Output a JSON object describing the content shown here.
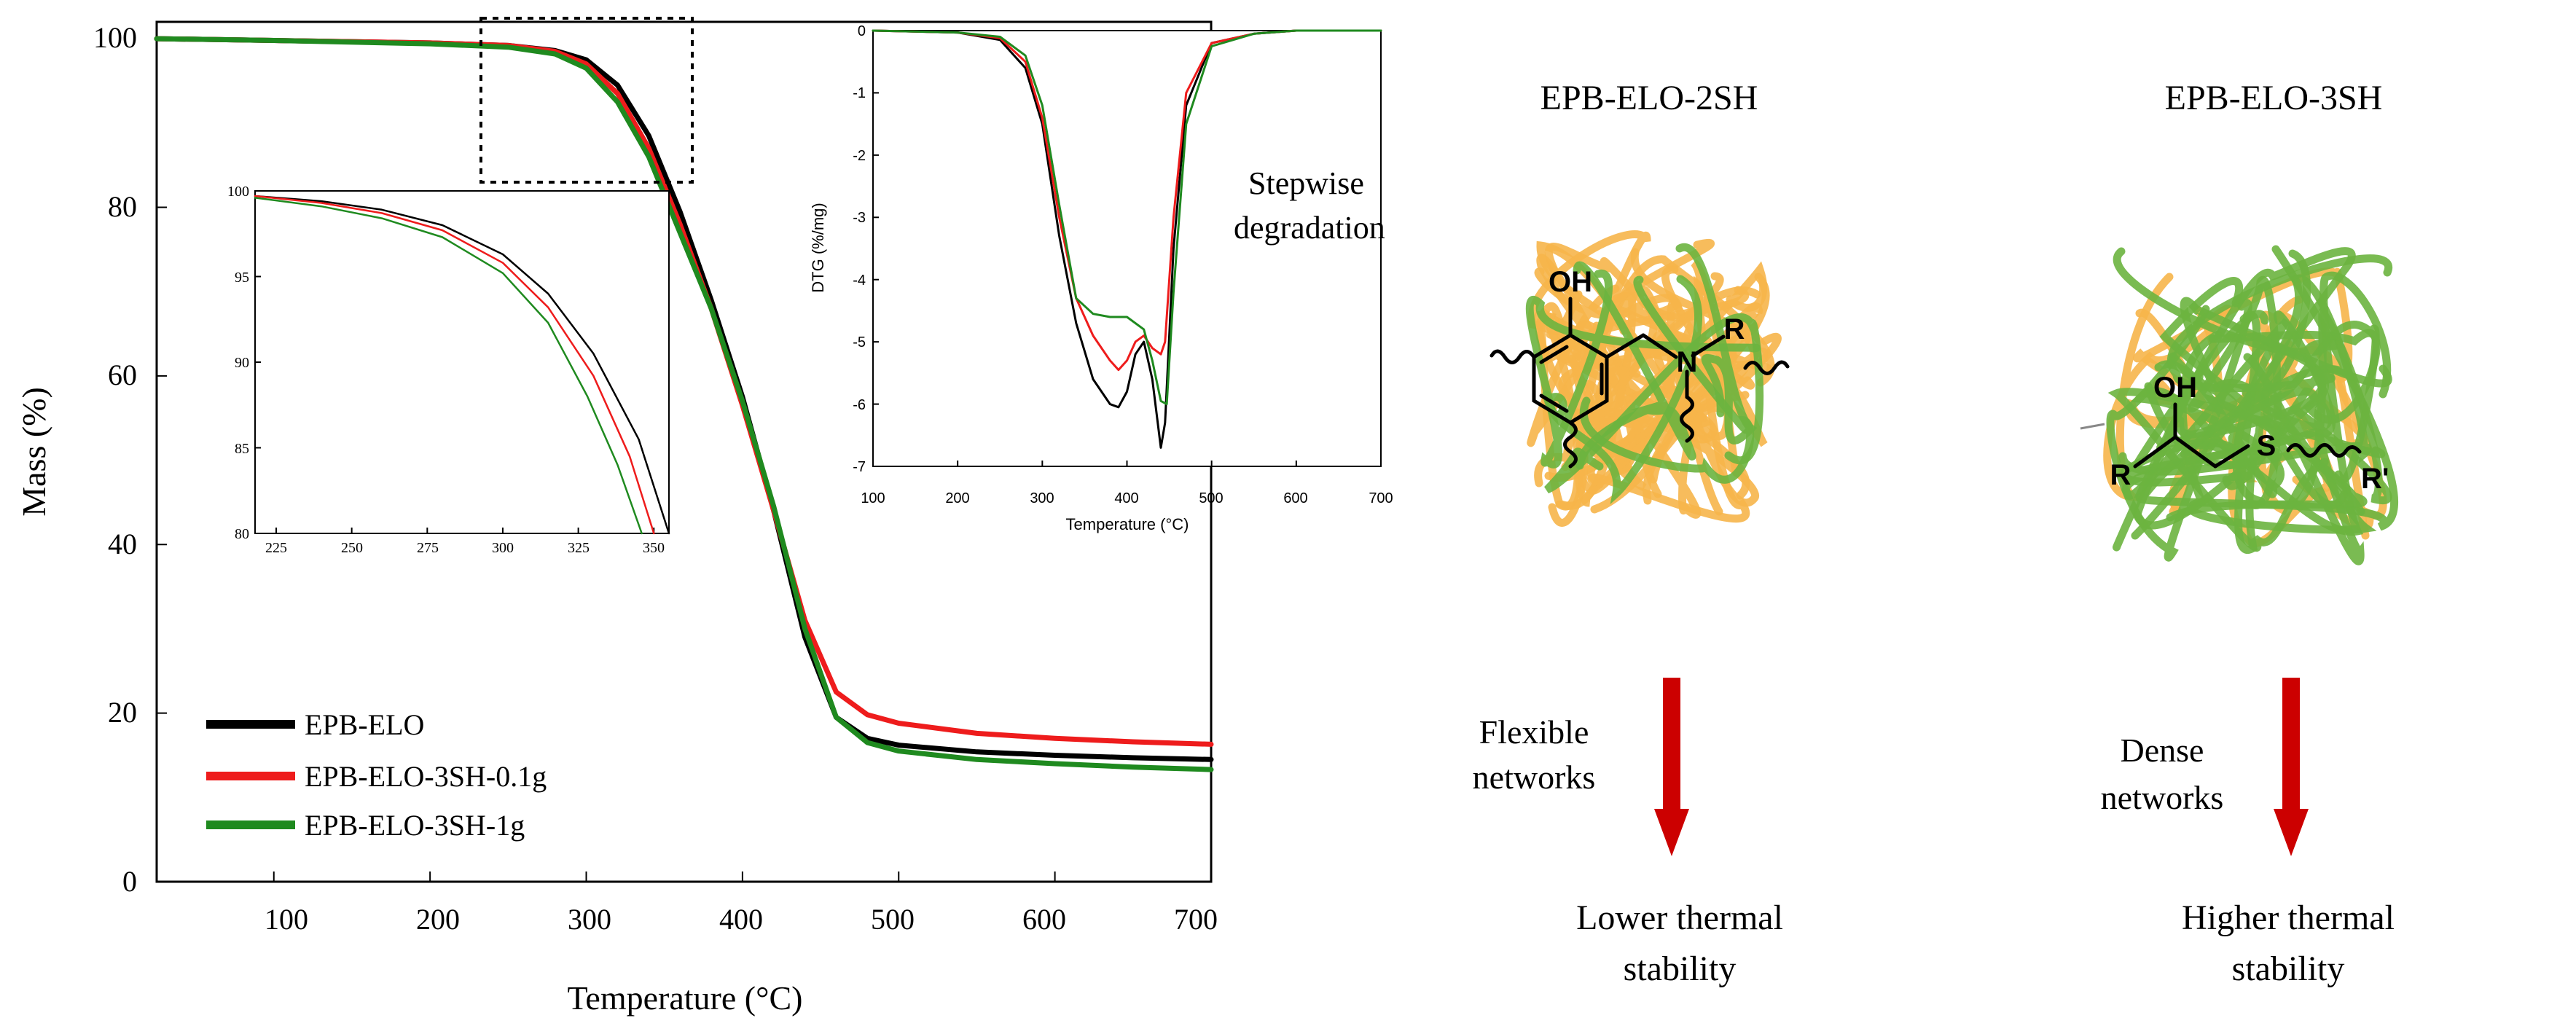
{
  "colors": {
    "black_series": "#000000",
    "red_series": "#ee1c1c",
    "green_series": "#1f8a1f",
    "network_orange": "#f6b54a",
    "network_green": "#6bb43f",
    "arrow_red": "#cc0000"
  },
  "chart_data": [
    {
      "id": "tga-main",
      "type": "line",
      "xlabel": "Temperature (°C)",
      "ylabel": "Mass (%)",
      "xlim": [
        25,
        700
      ],
      "ylim": [
        0,
        102
      ],
      "xticks": [
        100,
        200,
        300,
        400,
        500,
        600,
        700
      ],
      "yticks": [
        0,
        20,
        40,
        60,
        80,
        100
      ],
      "legend_position": "bottom-left",
      "series": [
        {
          "name": "EPB-ELO",
          "color_key": "black_series",
          "x": [
            25,
            100,
            200,
            250,
            280,
            300,
            320,
            340,
            360,
            380,
            400,
            420,
            440,
            460,
            480,
            500,
            550,
            600,
            650,
            700
          ],
          "y": [
            100,
            99.8,
            99.5,
            99.2,
            98.6,
            97.5,
            94.5,
            88.5,
            79.5,
            69,
            57.5,
            44,
            29,
            19.5,
            17,
            16.2,
            15.4,
            15,
            14.7,
            14.5
          ]
        },
        {
          "name": "EPB-ELO-3SH-0.1g",
          "color_key": "red_series",
          "x": [
            25,
            100,
            200,
            250,
            280,
            300,
            320,
            340,
            360,
            380,
            400,
            420,
            440,
            460,
            480,
            500,
            550,
            600,
            650,
            700
          ],
          "y": [
            100,
            99.8,
            99.5,
            99.2,
            98.5,
            97,
            93.5,
            87,
            78,
            68,
            56.5,
            44,
            31,
            22.5,
            19.8,
            18.8,
            17.6,
            17,
            16.6,
            16.3
          ]
        },
        {
          "name": "EPB-ELO-3SH-1g",
          "color_key": "green_series",
          "x": [
            25,
            100,
            200,
            250,
            280,
            300,
            320,
            340,
            360,
            380,
            400,
            420,
            440,
            460,
            480,
            500,
            550,
            600,
            650,
            700
          ],
          "y": [
            100,
            99.8,
            99.4,
            99,
            98.2,
            96.5,
            92.5,
            86,
            77,
            68,
            57,
            44.5,
            30,
            19.5,
            16.5,
            15.5,
            14.5,
            14,
            13.6,
            13.3
          ]
        }
      ]
    },
    {
      "id": "tga-zoom",
      "type": "line",
      "xlim": [
        218,
        355
      ],
      "ylim": [
        80,
        100
      ],
      "xticks": [
        225,
        250,
        275,
        300,
        325,
        350
      ],
      "yticks": [
        80,
        85,
        90,
        95,
        100
      ],
      "series": [
        {
          "name": "EPB-ELO",
          "color_key": "black_series",
          "x": [
            218,
            240,
            260,
            280,
            300,
            315,
            330,
            345,
            355
          ],
          "y": [
            99.7,
            99.4,
            98.9,
            98,
            96.3,
            94,
            90.5,
            85.5,
            80
          ]
        },
        {
          "name": "EPB-ELO-3SH-0.1g",
          "color_key": "red_series",
          "x": [
            218,
            240,
            260,
            280,
            300,
            315,
            330,
            342,
            350
          ],
          "y": [
            99.7,
            99.3,
            98.7,
            97.7,
            95.8,
            93.2,
            89.2,
            84.5,
            80
          ]
        },
        {
          "name": "EPB-ELO-3SH-1g",
          "color_key": "green_series",
          "x": [
            218,
            240,
            260,
            280,
            300,
            315,
            328,
            338,
            346
          ],
          "y": [
            99.6,
            99.1,
            98.4,
            97.3,
            95.2,
            92.3,
            88,
            84,
            80
          ]
        }
      ]
    },
    {
      "id": "dtg",
      "type": "line",
      "xlabel": "Temperature (°C)",
      "ylabel": "DTG (%/mg)",
      "xlim": [
        100,
        700
      ],
      "ylim": [
        -7,
        0
      ],
      "xticks": [
        100,
        200,
        300,
        400,
        500,
        600,
        700
      ],
      "yticks": [
        0,
        -1,
        -2,
        -3,
        -4,
        -5,
        -6,
        -7
      ],
      "annotation": "Stepwise degradation",
      "series": [
        {
          "name": "EPB-ELO",
          "color_key": "black_series",
          "x": [
            100,
            200,
            250,
            280,
            300,
            320,
            340,
            360,
            380,
            390,
            400,
            410,
            420,
            430,
            440,
            445,
            455,
            470,
            500,
            550,
            600,
            700
          ],
          "y": [
            0,
            -0.03,
            -0.15,
            -0.6,
            -1.5,
            -3.3,
            -4.7,
            -5.6,
            -6.0,
            -6.05,
            -5.8,
            -5.2,
            -5.0,
            -5.6,
            -6.7,
            -6.3,
            -3.5,
            -1.2,
            -0.2,
            -0.05,
            0,
            0
          ]
        },
        {
          "name": "EPB-ELO-3SH-0.1g",
          "color_key": "red_series",
          "x": [
            100,
            200,
            250,
            280,
            300,
            320,
            340,
            360,
            380,
            390,
            400,
            410,
            420,
            430,
            440,
            445,
            455,
            470,
            500,
            550,
            600,
            700
          ],
          "y": [
            0,
            -0.03,
            -0.12,
            -0.5,
            -1.4,
            -3.0,
            -4.3,
            -4.9,
            -5.3,
            -5.45,
            -5.3,
            -5.0,
            -4.9,
            -5.1,
            -5.2,
            -5.0,
            -3.0,
            -1.0,
            -0.2,
            -0.05,
            0,
            0
          ]
        },
        {
          "name": "EPB-ELO-3SH-1g",
          "color_key": "green_series",
          "x": [
            100,
            200,
            250,
            280,
            300,
            320,
            340,
            360,
            380,
            400,
            420,
            430,
            440,
            447,
            455,
            470,
            500,
            550,
            600,
            700
          ],
          "y": [
            0,
            -0.03,
            -0.1,
            -0.4,
            -1.2,
            -2.8,
            -4.3,
            -4.55,
            -4.6,
            -4.6,
            -4.8,
            -5.3,
            -5.95,
            -6.0,
            -4.2,
            -1.5,
            -0.25,
            -0.05,
            0,
            0
          ]
        }
      ]
    }
  ],
  "tga_main": {
    "xlabel": "Temperature (°C)",
    "ylabel": "Mass (%)",
    "x_tick_labels": [
      "100",
      "200",
      "300",
      "400",
      "500",
      "600",
      "700"
    ],
    "y_tick_labels": [
      "0",
      "20",
      "40",
      "60",
      "80",
      "100"
    ],
    "legend": [
      "EPB-ELO",
      "EPB-ELO-3SH-0.1g",
      "EPB-ELO-3SH-1g"
    ]
  },
  "tga_zoom": {
    "x_tick_labels": [
      "225",
      "250",
      "275",
      "300",
      "325",
      "350"
    ],
    "y_tick_labels": [
      "80",
      "85",
      "90",
      "95",
      "100"
    ]
  },
  "dtg": {
    "xlabel": "Temperature (°C)",
    "ylabel": "DTG (%/mg)",
    "x_tick_labels": [
      "100",
      "200",
      "300",
      "400",
      "500",
      "600",
      "700"
    ],
    "y_tick_labels": [
      "0",
      "-1",
      "-2",
      "-3",
      "-4",
      "-5",
      "-6",
      "-7"
    ],
    "annotation_line1": "Stepwise",
    "annotation_line2": "degradation"
  },
  "schematic": {
    "left": {
      "title": "EPB-ELO-2SH",
      "oh": "OH",
      "n_label": "N",
      "r_label": "R",
      "arrow_label_line1": "Flexible",
      "arrow_label_line2": "networks",
      "result_line1": "Lower thermal",
      "result_line2": "stability"
    },
    "right": {
      "title": "EPB-ELO-3SH",
      "oh": "OH",
      "s_label": "S",
      "r_label": "R",
      "r_prime_label": "R'",
      "arrow_label_line1": "Dense",
      "arrow_label_line2": "networks",
      "result_line1": "Higher thermal",
      "result_line2": "stability"
    }
  }
}
